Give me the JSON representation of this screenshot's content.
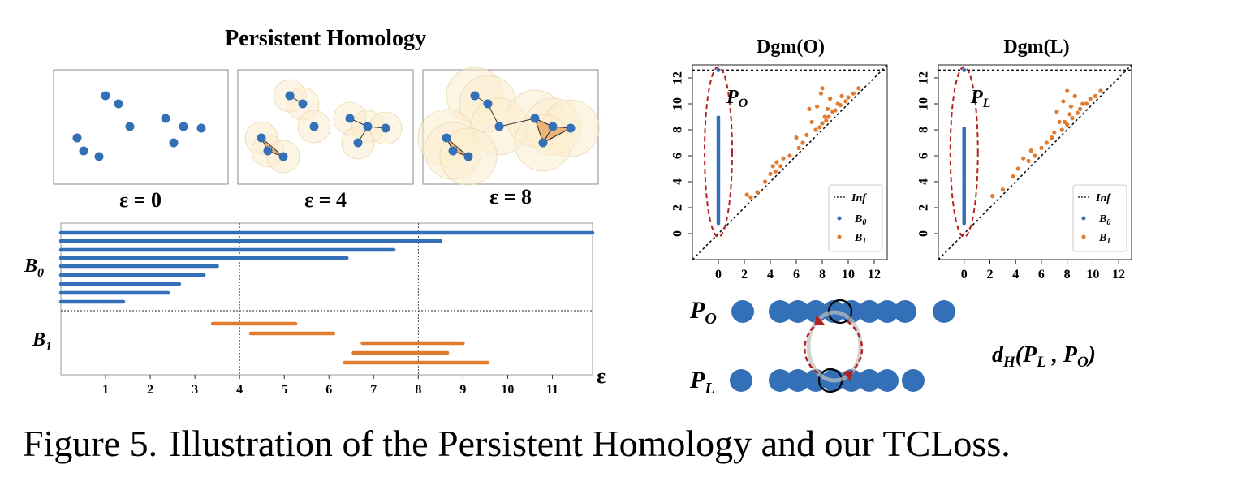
{
  "title": "Persistent Homology",
  "snapshots": [
    {
      "label": "ε = 0",
      "edges": false
    },
    {
      "label": "ε = 4",
      "edges": true
    },
    {
      "label": "ε = 8",
      "edges": true
    }
  ],
  "barcode": {
    "xlabel": "ε",
    "ticks": [
      "1",
      "2",
      "3",
      "4",
      "5",
      "6",
      "7",
      "8",
      "9",
      "10",
      "11"
    ],
    "B0_label": {
      "base": "B",
      "sub": "0"
    },
    "B1_label": {
      "base": "B",
      "sub": "1"
    },
    "B0_bars": [
      [
        0,
        11.9
      ],
      [
        0,
        8.5
      ],
      [
        0,
        7.45
      ],
      [
        0,
        6.4
      ],
      [
        0,
        3.5
      ],
      [
        0,
        3.2
      ],
      [
        0,
        2.65
      ],
      [
        0,
        2.4
      ],
      [
        0,
        1.4
      ]
    ],
    "B1_bars": [
      [
        3.4,
        5.25
      ],
      [
        4.25,
        6.1
      ],
      [
        6.75,
        9.0
      ],
      [
        6.55,
        8.65
      ],
      [
        6.35,
        9.55
      ]
    ],
    "vlines": [
      4,
      8
    ],
    "xlim": [
      0,
      11.9
    ],
    "colors": {
      "B0": "#3470b7",
      "B1": "#e07b2f"
    }
  },
  "diagrams": [
    {
      "title": "Dgm(O)",
      "region": {
        "base": "P",
        "sub": "O"
      },
      "b0_top": 9.0
    },
    {
      "title": "Dgm(L)",
      "region": {
        "base": "P",
        "sub": "L"
      },
      "b0_top": 8.2
    }
  ],
  "diagram_axes": {
    "ticks": [
      "0",
      "2",
      "4",
      "6",
      "8",
      "10",
      "12"
    ],
    "lim": [
      -2,
      13
    ],
    "inf": 12.6
  },
  "legend": {
    "inf": "Inf",
    "b0": {
      "base": "B",
      "sub": "0"
    },
    "b1": {
      "base": "B",
      "sub": "1"
    }
  },
  "chart_data": [
    {
      "type": "bar",
      "title": "",
      "xlabel": "ε",
      "xlim": [
        0,
        12
      ],
      "series": [
        {
          "name": "B0",
          "intervals": [
            [
              0,
              11.9
            ],
            [
              0,
              8.5
            ],
            [
              0,
              7.45
            ],
            [
              0,
              6.4
            ],
            [
              0,
              3.5
            ],
            [
              0,
              3.2
            ],
            [
              0,
              2.65
            ],
            [
              0,
              2.4
            ],
            [
              0,
              1.4
            ]
          ]
        },
        {
          "name": "B1",
          "intervals": [
            [
              3.4,
              5.25
            ],
            [
              4.25,
              6.1
            ],
            [
              6.75,
              9.0
            ],
            [
              6.55,
              8.65
            ],
            [
              6.35,
              9.55
            ]
          ]
        }
      ]
    },
    {
      "type": "scatter",
      "title": "Dgm(O)",
      "xlim": [
        -2,
        13
      ],
      "ylim": [
        -2,
        13
      ],
      "series": [
        {
          "name": "Inf",
          "y": 12.6
        },
        {
          "name": "B0",
          "x": 0,
          "y_range": [
            0.8,
            9.0
          ]
        },
        {
          "name": "B1",
          "points": [
            [
              2.2,
              3.0
            ],
            [
              2.5,
              2.8
            ],
            [
              3.0,
              3.2
            ],
            [
              3.6,
              4.0
            ],
            [
              4.0,
              4.6
            ],
            [
              4.2,
              5.2
            ],
            [
              4.4,
              4.8
            ],
            [
              4.5,
              5.5
            ],
            [
              4.8,
              5.2
            ],
            [
              5.0,
              5.8
            ],
            [
              5.5,
              6.0
            ],
            [
              6.0,
              7.4
            ],
            [
              6.2,
              6.6
            ],
            [
              6.5,
              7.0
            ],
            [
              6.8,
              7.6
            ],
            [
              7.0,
              9.6
            ],
            [
              7.2,
              8.6
            ],
            [
              7.5,
              8.0
            ],
            [
              7.6,
              9.8
            ],
            [
              7.8,
              8.2
            ],
            [
              7.9,
              10.8
            ],
            [
              8.0,
              8.5
            ],
            [
              8.0,
              11.2
            ],
            [
              8.2,
              9.0
            ],
            [
              8.3,
              8.7
            ],
            [
              8.4,
              9.6
            ],
            [
              8.5,
              9.0
            ],
            [
              8.6,
              10.4
            ],
            [
              8.8,
              9.4
            ],
            [
              9.0,
              9.5
            ],
            [
              9.2,
              10.0
            ],
            [
              9.4,
              9.9
            ],
            [
              9.5,
              10.6
            ],
            [
              9.8,
              10.2
            ],
            [
              10.0,
              10.5
            ],
            [
              10.4,
              10.8
            ],
            [
              10.8,
              11.2
            ]
          ]
        }
      ]
    },
    {
      "type": "scatter",
      "title": "Dgm(L)",
      "xlim": [
        -2,
        13
      ],
      "ylim": [
        -2,
        13
      ],
      "series": [
        {
          "name": "Inf",
          "y": 12.6
        },
        {
          "name": "B0",
          "x": 0,
          "y_range": [
            0.8,
            8.2
          ]
        },
        {
          "name": "B1",
          "points": [
            [
              2.2,
              2.9
            ],
            [
              3.0,
              3.4
            ],
            [
              3.8,
              4.4
            ],
            [
              4.2,
              5.0
            ],
            [
              4.6,
              5.8
            ],
            [
              5.0,
              5.6
            ],
            [
              5.2,
              6.4
            ],
            [
              5.5,
              6.0
            ],
            [
              6.0,
              6.6
            ],
            [
              6.4,
              7.0
            ],
            [
              6.8,
              7.4
            ],
            [
              7.0,
              7.8
            ],
            [
              7.2,
              9.4
            ],
            [
              7.4,
              8.6
            ],
            [
              7.6,
              8.0
            ],
            [
              7.7,
              10.2
            ],
            [
              7.8,
              8.6
            ],
            [
              8.0,
              11.0
            ],
            [
              8.0,
              8.4
            ],
            [
              8.2,
              9.2
            ],
            [
              8.3,
              9.8
            ],
            [
              8.4,
              8.9
            ],
            [
              8.6,
              10.6
            ],
            [
              8.8,
              9.3
            ],
            [
              9.0,
              9.6
            ],
            [
              9.2,
              10.0
            ],
            [
              9.5,
              10.0
            ],
            [
              9.8,
              10.4
            ],
            [
              10.2,
              10.6
            ],
            [
              10.6,
              11.0
            ]
          ]
        }
      ]
    }
  ],
  "comparison": {
    "top_label": {
      "base": "P",
      "sub": "O"
    },
    "bottom_label": {
      "base": "P",
      "sub": "L"
    },
    "distance": {
      "prefix": "d",
      "sub": "H",
      "args": "(P",
      "argsub1": "L",
      "mid": " , P",
      "argsub2": "O",
      "end": ")"
    }
  },
  "caption": {
    "number": "Figure 5.",
    "text": "Illustration of the Persistent Homology and our TCLoss."
  }
}
